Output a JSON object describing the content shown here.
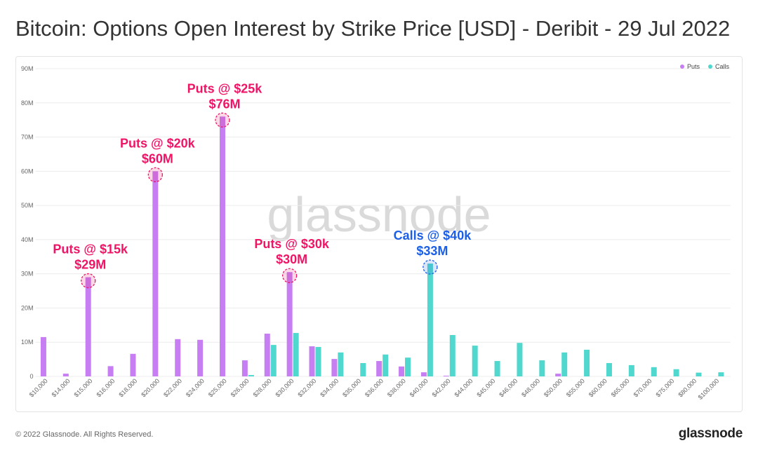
{
  "watermark": "glassnode",
  "footer": {
    "copyright": "© 2022 Glassnode. All Rights Reserved.",
    "logo": "glassnode"
  },
  "colors": {
    "puts": "#c77ef2",
    "calls": "#50d8ce",
    "annotation_puts": "#ef1566",
    "annotation_calls": "#1c5ee6",
    "grid": "#ececec",
    "axis_text": "#666666",
    "watermark": "#dadada"
  },
  "chart_data": {
    "type": "bar",
    "title": "Bitcoin: Options Open Interest by Strike Price [USD] - Deribit - 29 Jul 2022",
    "xlabel": "",
    "ylabel": "",
    "grid": true,
    "legend": {
      "position": "top-right"
    },
    "ylim": [
      0,
      90000000
    ],
    "yticks": [
      {
        "value": 0,
        "label": "0"
      },
      {
        "value": 10000000,
        "label": "10M"
      },
      {
        "value": 20000000,
        "label": "20M"
      },
      {
        "value": 30000000,
        "label": "30M"
      },
      {
        "value": 40000000,
        "label": "40M"
      },
      {
        "value": 50000000,
        "label": "50M"
      },
      {
        "value": 60000000,
        "label": "60M"
      },
      {
        "value": 70000000,
        "label": "70M"
      },
      {
        "value": 80000000,
        "label": "80M"
      },
      {
        "value": 90000000,
        "label": "90M"
      }
    ],
    "categories": [
      "$10,000",
      "$14,000",
      "$15,000",
      "$16,000",
      "$18,000",
      "$20,000",
      "$22,000",
      "$24,000",
      "$25,000",
      "$26,000",
      "$28,000",
      "$30,000",
      "$32,000",
      "$34,000",
      "$35,000",
      "$36,000",
      "$38,000",
      "$40,000",
      "$42,000",
      "$44,000",
      "$45,000",
      "$46,000",
      "$48,000",
      "$50,000",
      "$55,000",
      "$60,000",
      "$65,000",
      "$70,000",
      "$75,000",
      "$80,000",
      "$100,000"
    ],
    "series": [
      {
        "name": "Puts",
        "values": [
          11500000,
          800000,
          29000000,
          3000000,
          6600000,
          60000000,
          10900000,
          10700000,
          76000000,
          4700000,
          12500000,
          30500000,
          8800000,
          5100000,
          0,
          4500000,
          2900000,
          1200000,
          200000,
          0,
          0,
          0,
          0,
          800000,
          0,
          0,
          0,
          0,
          0,
          0,
          0
        ]
      },
      {
        "name": "Calls",
        "values": [
          0,
          0,
          0,
          0,
          0,
          0,
          0,
          0,
          0,
          400000,
          9200000,
          12700000,
          8600000,
          7000000,
          3900000,
          6400000,
          5500000,
          33000000,
          12100000,
          9000000,
          4500000,
          9800000,
          4700000,
          7000000,
          7800000,
          3900000,
          3300000,
          2700000,
          2100000,
          1100000,
          1200000
        ]
      }
    ],
    "annotations": [
      {
        "series": "Puts",
        "strike": "$15,000",
        "label": "Puts @ $15k",
        "value_label": "$29M"
      },
      {
        "series": "Puts",
        "strike": "$20,000",
        "label": "Puts @ $20k",
        "value_label": "$60M"
      },
      {
        "series": "Puts",
        "strike": "$25,000",
        "label": "Puts @ $25k",
        "value_label": "$76M"
      },
      {
        "series": "Puts",
        "strike": "$30,000",
        "label": "Puts @ $30k",
        "value_label": "$30M"
      },
      {
        "series": "Calls",
        "strike": "$40,000",
        "label": "Calls @ $40k",
        "value_label": "$33M"
      }
    ]
  }
}
